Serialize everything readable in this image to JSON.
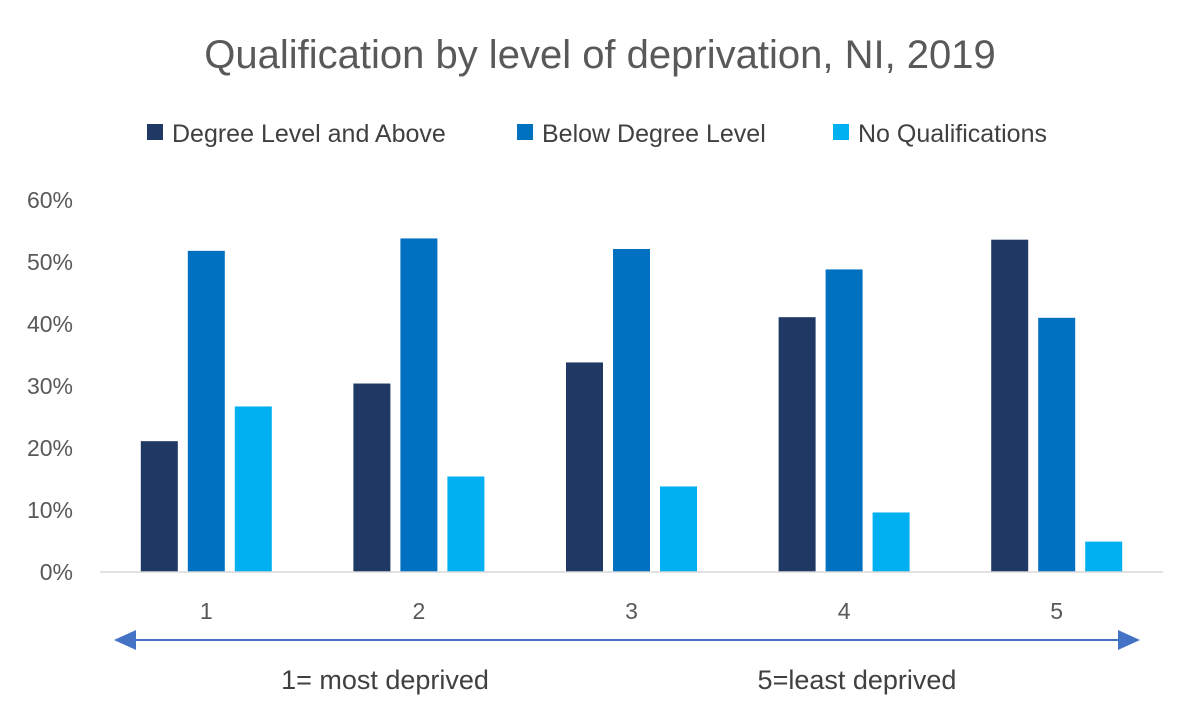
{
  "chart_data": {
    "type": "bar",
    "title": "Qualification by level of deprivation, NI, 2019",
    "categories": [
      "1",
      "2",
      "3",
      "4",
      "5"
    ],
    "series": [
      {
        "name": "Degree Level and Above",
        "color": "#1f3864",
        "values": [
          21.1,
          30.4,
          33.8,
          41.1,
          53.6
        ]
      },
      {
        "name": "Below Degree Level",
        "color": "#0070c0",
        "values": [
          51.8,
          53.8,
          52.1,
          48.8,
          41.0
        ]
      },
      {
        "name": "No Qualifications",
        "color": "#00b0f0",
        "values": [
          26.7,
          15.4,
          13.8,
          9.6,
          4.9
        ]
      }
    ],
    "ylim": [
      0,
      60
    ],
    "yticks": [
      "0%",
      "10%",
      "20%",
      "30%",
      "40%",
      "50%",
      "60%"
    ],
    "legend_position": "top",
    "grid": false,
    "annotation": {
      "left": "1= most deprived",
      "right": "5=least deprived",
      "arrow_color": "#4472c4"
    }
  }
}
